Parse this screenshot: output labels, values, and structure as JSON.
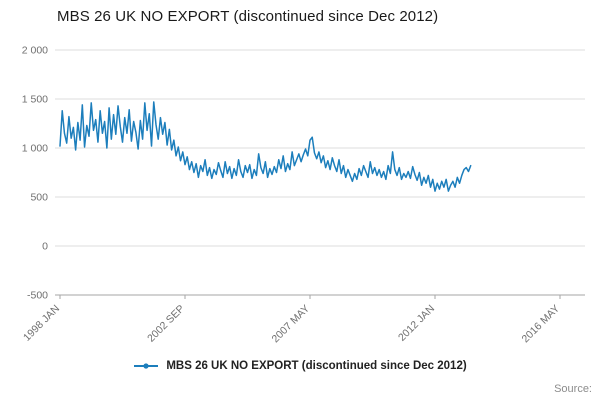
{
  "title": "MBS 26 UK NO EXPORT (discontinued since Dec 2012)",
  "legend": {
    "label": "MBS 26 UK NO EXPORT (discontinued since Dec 2012)"
  },
  "source_label": "Source:",
  "colors": {
    "series": "#1c7ebc",
    "grid": "#dcdcdc",
    "axis": "#a6a6a6",
    "tick_text": "#6f6f6f",
    "title_text": "#1a1a1a"
  },
  "chart_data": {
    "type": "line",
    "title": "MBS 26 UK NO EXPORT (discontinued since Dec 2012)",
    "xlabel": "",
    "ylabel": "",
    "ylim": [
      -500,
      2000
    ],
    "grid": "horizontal",
    "legend_position": "bottom",
    "x_start": "1998 JAN",
    "frequency": "monthly",
    "x_ticks": [
      "1998 JAN",
      "2002 SEP",
      "2007 MAY",
      "2012 JAN",
      "2016 MAY"
    ],
    "x_tick_interval_months": 56,
    "y_ticks": [
      {
        "value": 2000,
        "label": "2 000"
      },
      {
        "value": 1500,
        "label": "1 500"
      },
      {
        "value": 1000,
        "label": "1 000"
      },
      {
        "value": 500,
        "label": "500"
      },
      {
        "value": 0,
        "label": "0"
      },
      {
        "value": -500,
        "label": "-500"
      }
    ],
    "series": [
      {
        "name": "MBS 26 UK NO EXPORT (discontinued since Dec 2012)",
        "start": "1998 JAN",
        "end": "2013 MAY",
        "values": [
          1020,
          1380,
          1150,
          1050,
          1320,
          1100,
          1210,
          980,
          1260,
          1080,
          1440,
          1010,
          1230,
          1120,
          1460,
          1180,
          1290,
          1060,
          1380,
          1150,
          1270,
          1000,
          1410,
          1090,
          1340,
          1140,
          1430,
          1220,
          1060,
          1310,
          1150,
          1390,
          1070,
          1270,
          1160,
          990,
          1280,
          1090,
          1460,
          1180,
          1350,
          1020,
          1470,
          1240,
          1090,
          1310,
          1140,
          1260,
          1030,
          1190,
          980,
          1080,
          920,
          1010,
          870,
          960,
          830,
          910,
          780,
          860,
          750,
          840,
          700,
          820,
          760,
          880,
          720,
          800,
          690,
          780,
          730,
          850,
          770,
          700,
          860,
          740,
          810,
          690,
          790,
          720,
          880,
          760,
          700,
          820,
          750,
          830,
          690,
          780,
          720,
          940,
          800,
          740,
          860,
          700,
          790,
          730,
          810,
          750,
          880,
          790,
          920,
          760,
          840,
          780,
          960,
          820,
          880,
          940,
          860,
          930,
          990,
          920,
          1080,
          1110,
          950,
          890,
          960,
          850,
          920,
          800,
          870,
          780,
          900,
          820,
          760,
          880,
          740,
          820,
          700,
          780,
          720,
          660,
          740,
          680,
          790,
          720,
          820,
          760,
          700,
          860,
          740,
          800,
          720,
          780,
          700,
          760,
          680,
          820,
          740,
          960,
          780,
          720,
          800,
          680,
          740,
          700,
          760,
          690,
          810,
          730,
          670,
          750,
          620,
          700,
          640,
          720,
          600,
          680,
          560,
          640,
          580,
          660,
          600,
          680,
          560,
          620,
          660,
          600,
          700,
          640,
          720,
          780,
          800,
          760,
          820
        ]
      }
    ]
  }
}
